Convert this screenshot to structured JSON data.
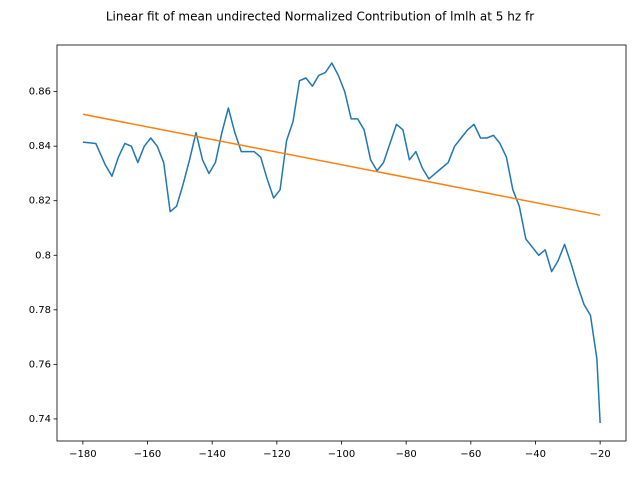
{
  "chart_data": {
    "type": "line",
    "title": "Linear fit of mean undirected Normalized Contribution of lmlh at 5 hz fr",
    "xlim": [
      -188,
      -12
    ],
    "ylim": [
      0.7319,
      0.8771
    ],
    "xticks": [
      {
        "value": -180,
        "label": "−180"
      },
      {
        "value": -160,
        "label": "−160"
      },
      {
        "value": -140,
        "label": "−140"
      },
      {
        "value": -120,
        "label": "−120"
      },
      {
        "value": -100,
        "label": "−100"
      },
      {
        "value": -80,
        "label": "−80"
      },
      {
        "value": -60,
        "label": "−60"
      },
      {
        "value": -40,
        "label": "−40"
      },
      {
        "value": -20,
        "label": "−20"
      }
    ],
    "yticks": [
      0.74,
      0.76,
      0.78,
      0.8,
      0.82,
      0.84,
      0.86
    ],
    "grid": false,
    "series": [
      {
        "color": "#1f77b4",
        "x": [
          -180,
          -176,
          -173,
          -171,
          -169,
          -167,
          -165,
          -163,
          -161,
          -159,
          -157,
          -155,
          -153,
          -151,
          -149,
          -147,
          -145,
          -143,
          -141,
          -139,
          -137,
          -135,
          -133,
          -131,
          -129,
          -127,
          -125,
          -123,
          -121,
          -119,
          -117,
          -115,
          -113,
          -111,
          -109,
          -107,
          -105,
          -103,
          -101,
          -99,
          -97,
          -95,
          -93,
          -91,
          -89,
          -87,
          -85,
          -83,
          -81,
          -79,
          -77,
          -75,
          -73,
          -71,
          -69,
          -67,
          -65,
          -63,
          -61,
          -59,
          -57,
          -55,
          -53,
          -51,
          -49,
          -47,
          -45,
          -43,
          -41,
          -39,
          -37,
          -35,
          -33,
          -31,
          -29,
          -27,
          -25,
          -23,
          -21,
          -20
        ],
        "values": [
          0.8415,
          0.841,
          0.833,
          0.829,
          0.836,
          0.841,
          0.84,
          0.834,
          0.84,
          0.843,
          0.84,
          0.834,
          0.816,
          0.818,
          0.826,
          0.835,
          0.845,
          0.835,
          0.83,
          0.834,
          0.845,
          0.854,
          0.845,
          0.838,
          0.838,
          0.838,
          0.836,
          0.828,
          0.821,
          0.824,
          0.842,
          0.849,
          0.864,
          0.865,
          0.862,
          0.866,
          0.867,
          0.8705,
          0.866,
          0.86,
          0.85,
          0.85,
          0.846,
          0.835,
          0.831,
          0.834,
          0.841,
          0.848,
          0.846,
          0.835,
          0.838,
          0.832,
          0.828,
          0.83,
          0.832,
          0.834,
          0.84,
          0.843,
          0.846,
          0.848,
          0.843,
          0.843,
          0.844,
          0.841,
          0.836,
          0.824,
          0.818,
          0.806,
          0.803,
          0.8,
          0.802,
          0.794,
          0.798,
          0.804,
          0.797,
          0.789,
          0.782,
          0.778,
          0.762,
          0.7385
        ]
      },
      {
        "color": "#ff7f0e",
        "x": [
          -180,
          -20
        ],
        "values": [
          0.8517,
          0.8147
        ]
      }
    ]
  }
}
